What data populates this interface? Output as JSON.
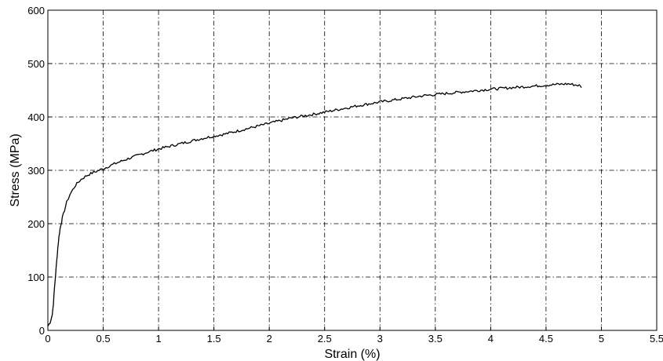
{
  "chart_data": {
    "type": "line",
    "title": "",
    "xlabel": "Strain (%)",
    "ylabel": "Stress (MPa)",
    "xlim": [
      0,
      5.5
    ],
    "ylim": [
      0,
      600
    ],
    "xticks": [
      0,
      0.5,
      1,
      1.5,
      2,
      2.5,
      3,
      3.5,
      4,
      4.5,
      5,
      5.5
    ],
    "xtick_labels": [
      "0",
      "0.5",
      "1",
      "1.5",
      "2",
      "2.5",
      "3",
      "3.5",
      "4",
      "4.5",
      "5",
      "5.5"
    ],
    "yticks": [
      0,
      100,
      200,
      300,
      400,
      500,
      600
    ],
    "ytick_labels": [
      "0",
      "100",
      "200",
      "300",
      "400",
      "500",
      "600"
    ],
    "grid": true,
    "legend": "none",
    "series": [
      {
        "color": "#000000",
        "x": [
          0.0,
          0.02,
          0.04,
          0.05,
          0.06,
          0.07,
          0.08,
          0.09,
          0.1,
          0.11,
          0.12,
          0.13,
          0.15,
          0.17,
          0.2,
          0.25,
          0.3,
          0.35,
          0.4,
          0.5,
          0.6,
          0.7,
          0.8,
          0.9,
          1.0,
          1.2,
          1.4,
          1.6,
          1.8,
          2.0,
          2.2,
          2.4,
          2.6,
          2.8,
          3.0,
          3.2,
          3.4,
          3.6,
          3.8,
          4.0,
          4.2,
          4.4,
          4.6,
          4.7,
          4.8,
          4.82
        ],
        "y": [
          8,
          15,
          30,
          50,
          80,
          105,
          130,
          155,
          175,
          190,
          200,
          210,
          225,
          240,
          255,
          272,
          283,
          290,
          295,
          303,
          312,
          320,
          327,
          334,
          340,
          350,
          360,
          368,
          378,
          388,
          398,
          405,
          413,
          421,
          428,
          434,
          440,
          444,
          448,
          452,
          455,
          458,
          461,
          462,
          459,
          455
        ]
      }
    ]
  }
}
